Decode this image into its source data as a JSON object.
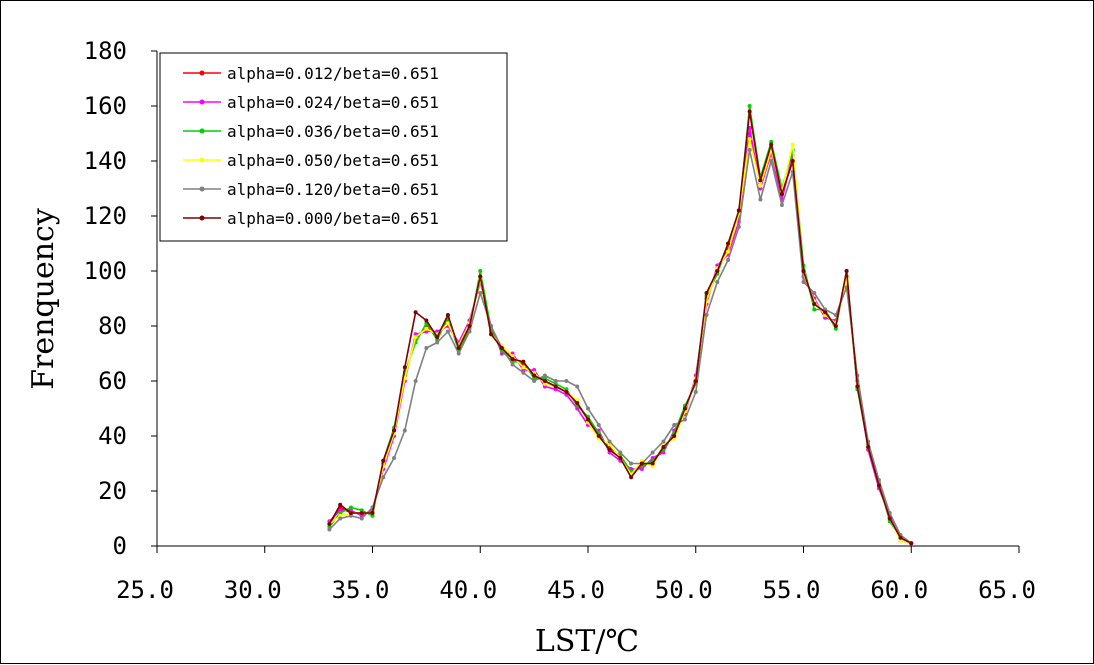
{
  "chart_data": {
    "type": "line",
    "xlabel": "LST/℃",
    "ylabel": "Frenquency",
    "xlim": [
      25,
      65
    ],
    "ylim": [
      0,
      180
    ],
    "x_ticks": [
      "25.0",
      "30.0",
      "35.0",
      "40.0",
      "45.0",
      "50.0",
      "55.0",
      "60.0",
      "65.0"
    ],
    "y_ticks": [
      "0",
      "20",
      "40",
      "60",
      "80",
      "100",
      "120",
      "140",
      "160",
      "180"
    ],
    "grid": false,
    "legend_position": "top-left",
    "x": [
      33.0,
      33.5,
      34.0,
      34.5,
      35.0,
      35.5,
      36.0,
      36.5,
      37.0,
      37.5,
      38.0,
      38.5,
      39.0,
      39.5,
      40.0,
      40.5,
      41.0,
      41.5,
      42.0,
      42.5,
      43.0,
      43.5,
      44.0,
      44.5,
      45.0,
      45.5,
      46.0,
      46.5,
      47.0,
      47.5,
      48.0,
      48.5,
      49.0,
      49.5,
      50.0,
      50.5,
      51.0,
      51.5,
      52.0,
      52.5,
      53.0,
      53.5,
      54.0,
      54.5,
      55.0,
      55.5,
      56.0,
      56.5,
      57.0,
      57.5,
      58.0,
      58.5,
      59.0,
      59.5,
      60.0
    ],
    "series": [
      {
        "name": "alpha=0.012/beta=0.651",
        "color": "#ff0000",
        "values": [
          8,
          14,
          12,
          12,
          12,
          30,
          42,
          62,
          75,
          80,
          76,
          82,
          72,
          80,
          98,
          78,
          72,
          68,
          66,
          62,
          60,
          58,
          56,
          52,
          46,
          40,
          36,
          32,
          26,
          30,
          30,
          36,
          40,
          50,
          60,
          90,
          100,
          108,
          122,
          150,
          132,
          145,
          128,
          140,
          100,
          88,
          85,
          80,
          98,
          58,
          36,
          22,
          10,
          3,
          1
        ]
      },
      {
        "name": "alpha=0.024/beta=0.651",
        "color": "#ff00ff",
        "values": [
          9,
          13,
          13,
          11,
          13,
          28,
          40,
          60,
          77,
          78,
          78,
          80,
          74,
          82,
          96,
          80,
          70,
          70,
          64,
          64,
          58,
          57,
          55,
          50,
          44,
          42,
          34,
          31,
          28,
          28,
          32,
          34,
          42,
          48,
          62,
          88,
          102,
          106,
          118,
          152,
          130,
          143,
          126,
          142,
          98,
          90,
          83,
          82,
          96,
          60,
          35,
          21,
          11,
          2,
          1
        ]
      },
      {
        "name": "alpha=0.036/beta=0.651",
        "color": "#00d000",
        "values": [
          7,
          12,
          14,
          13,
          11,
          31,
          43,
          63,
          74,
          81,
          75,
          83,
          71,
          79,
          100,
          79,
          71,
          67,
          67,
          61,
          61,
          59,
          57,
          51,
          47,
          41,
          35,
          33,
          27,
          29,
          31,
          35,
          41,
          51,
          59,
          91,
          99,
          110,
          120,
          160,
          134,
          147,
          130,
          144,
          102,
          86,
          86,
          79,
          100,
          57,
          37,
          23,
          9,
          3,
          1
        ]
      },
      {
        "name": "alpha=0.050/beta=0.651",
        "color": "#ffff00",
        "values": [
          8,
          11,
          12,
          12,
          12,
          29,
          41,
          61,
          76,
          79,
          77,
          81,
          73,
          81,
          97,
          77,
          73,
          69,
          65,
          63,
          59,
          58,
          56,
          53,
          45,
          39,
          37,
          32,
          26,
          31,
          29,
          37,
          39,
          49,
          61,
          89,
          101,
          107,
          121,
          148,
          131,
          144,
          129,
          146,
          99,
          89,
          84,
          81,
          97,
          59,
          36,
          22,
          10,
          2,
          1
        ]
      },
      {
        "name": "alpha=0.120/beta=0.651",
        "color": "#808080",
        "values": [
          6,
          10,
          11,
          10,
          14,
          25,
          32,
          42,
          60,
          72,
          74,
          78,
          70,
          78,
          92,
          80,
          72,
          66,
          63,
          60,
          62,
          60,
          60,
          58,
          50,
          44,
          38,
          34,
          30,
          30,
          34,
          38,
          44,
          46,
          56,
          84,
          96,
          104,
          116,
          144,
          126,
          140,
          124,
          136,
          96,
          92,
          86,
          84,
          94,
          62,
          38,
          24,
          12,
          4,
          1
        ]
      },
      {
        "name": "alpha=0.000/beta=0.651",
        "color": "#800000",
        "values": [
          8,
          15,
          12,
          12,
          12,
          31,
          42,
          65,
          85,
          82,
          76,
          84,
          72,
          80,
          98,
          77,
          72,
          68,
          67,
          62,
          60,
          58,
          56,
          52,
          46,
          40,
          35,
          32,
          25,
          30,
          30,
          36,
          40,
          50,
          60,
          92,
          100,
          110,
          122,
          158,
          133,
          146,
          128,
          140,
          100,
          88,
          85,
          80,
          100,
          58,
          36,
          22,
          10,
          3,
          1
        ]
      }
    ]
  }
}
